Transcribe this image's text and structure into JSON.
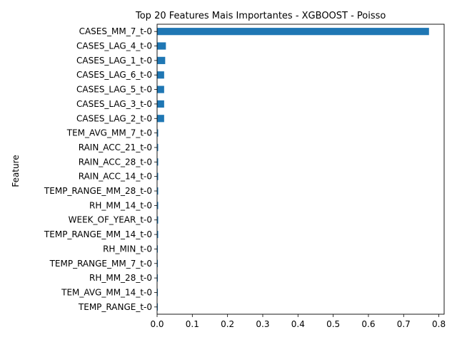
{
  "chart_data": {
    "type": "bar",
    "orientation": "horizontal",
    "title": "Top 20 Features Mais Importantes - XGBOOST - Poisso",
    "xlabel": "",
    "ylabel": "Feature",
    "xlim": [
      0,
      0.815
    ],
    "xticks": [
      0.0,
      0.1,
      0.2,
      0.3,
      0.4,
      0.5,
      0.6,
      0.7,
      0.8
    ],
    "xtick_labels": [
      "0.0",
      "0.1",
      "0.2",
      "0.3",
      "0.4",
      "0.5",
      "0.6",
      "0.7",
      "0.8"
    ],
    "grid": false,
    "legend": "none",
    "bar_color": "#1f77b4",
    "categories": [
      "CASES_MM_7_t-0",
      "CASES_LAG_4_t-0",
      "CASES_LAG_1_t-0",
      "CASES_LAG_6_t-0",
      "CASES_LAG_5_t-0",
      "CASES_LAG_3_t-0",
      "CASES_LAG_2_t-0",
      "TEM_AVG_MM_7_t-0",
      "RAIN_ACC_21_t-0",
      "RAIN_ACC_28_t-0",
      "RAIN_ACC_14_t-0",
      "TEMP_RANGE_MM_28_t-0",
      "RH_MM_14_t-0",
      "WEEK_OF_YEAR_t-0",
      "TEMP_RANGE_MM_14_t-0",
      "RH_MIN_t-0",
      "TEMP_RANGE_MM_7_t-0",
      "RH_MM_28_t-0",
      "TEM_AVG_MM_14_t-0",
      "TEMP_RANGE_t-0"
    ],
    "values": [
      0.772,
      0.025,
      0.023,
      0.02,
      0.02,
      0.02,
      0.02,
      0.003,
      0.003,
      0.003,
      0.003,
      0.003,
      0.003,
      0.003,
      0.003,
      0.002,
      0.002,
      0.002,
      0.002,
      0.002
    ]
  }
}
